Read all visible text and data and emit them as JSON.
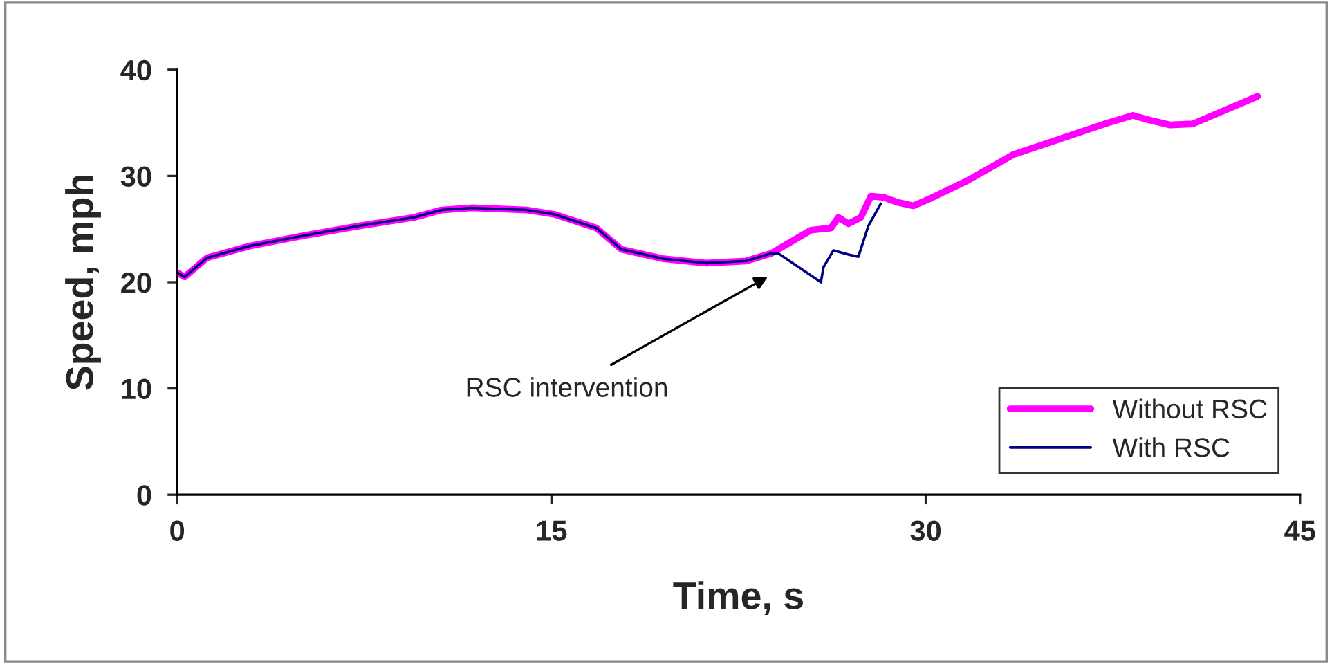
{
  "chart_data": {
    "type": "line",
    "xlabel": "Time, s",
    "ylabel": "Speed, mph",
    "xlim": [
      0,
      45
    ],
    "xticks": [
      0,
      15,
      30,
      45
    ],
    "ylim": [
      0,
      40
    ],
    "yticks": [
      0,
      10,
      20,
      30,
      40
    ],
    "grid": false,
    "legend": "bottom right",
    "line_style": "solid",
    "marker": "none",
    "annotations": [
      "RSC intervention"
    ],
    "series": [
      {
        "name": "Without RSC",
        "color": "#ff00ff",
        "x": [
          0,
          0.3,
          1.2,
          2.9,
          5.1,
          7.3,
          9.5,
          10.6,
          11.8,
          14.0,
          15.1,
          16.8,
          17.8,
          19.5,
          21.2,
          22.8,
          23.8,
          25.4,
          26.2,
          26.5,
          26.9,
          27.4,
          27.8,
          28.3,
          28.9,
          29.5,
          30.2,
          31.7,
          33.5,
          35.4,
          37.3,
          38.3,
          38.9,
          39.8,
          40.7,
          41.9,
          43.3
        ],
        "values": [
          20.9,
          20.5,
          22.3,
          23.4,
          24.4,
          25.3,
          26.1,
          26.8,
          27.0,
          26.8,
          26.4,
          25.1,
          23.1,
          22.2,
          21.8,
          22.0,
          22.7,
          24.9,
          25.1,
          26.1,
          25.5,
          26.1,
          28.1,
          28.0,
          27.5,
          27.2,
          27.9,
          29.6,
          32.0,
          33.5,
          35.0,
          35.7,
          35.3,
          34.8,
          34.9,
          36.1,
          37.5
        ]
      },
      {
        "name": "With RSC",
        "color": "#000080",
        "x": [
          0,
          0.3,
          1.2,
          2.9,
          5.1,
          7.3,
          9.5,
          10.6,
          11.8,
          14.0,
          15.1,
          16.8,
          17.8,
          19.5,
          21.2,
          22.8,
          23.8,
          24.1,
          25.8,
          25.9,
          26.3,
          26.9,
          27.3,
          27.7,
          28.2
        ],
        "values": [
          20.9,
          20.5,
          22.3,
          23.4,
          24.4,
          25.3,
          26.1,
          26.8,
          27.0,
          26.8,
          26.4,
          25.1,
          23.1,
          22.2,
          21.8,
          22.0,
          22.7,
          22.7,
          20.0,
          21.4,
          23.0,
          22.6,
          22.4,
          25.3,
          27.4
        ]
      }
    ]
  }
}
